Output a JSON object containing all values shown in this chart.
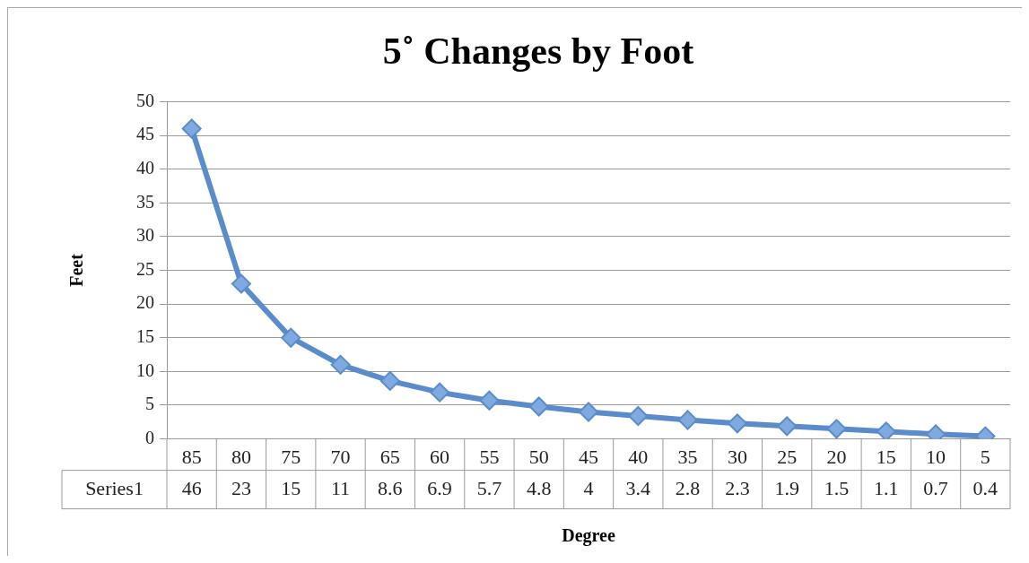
{
  "chart_data": {
    "type": "line",
    "title": "5˚ Changes by Foot",
    "xlabel": "Degree",
    "ylabel": "Feet",
    "categories": [
      "85",
      "80",
      "75",
      "70",
      "65",
      "60",
      "55",
      "50",
      "45",
      "40",
      "35",
      "30",
      "25",
      "20",
      "15",
      "10",
      "5"
    ],
    "series": [
      {
        "name": "Series1",
        "color": "#5a8ccc",
        "values": [
          46,
          23,
          15,
          11,
          8.6,
          6.9,
          5.7,
          4.8,
          4,
          3.4,
          2.8,
          2.3,
          1.9,
          1.5,
          1.1,
          0.7,
          0.4
        ]
      }
    ],
    "ylim": [
      0,
      50
    ],
    "yticks": [
      0,
      5,
      10,
      15,
      20,
      25,
      30,
      35,
      40,
      45,
      50
    ],
    "grid": "y",
    "marker": "diamond",
    "data_labels": true,
    "legend": false
  }
}
